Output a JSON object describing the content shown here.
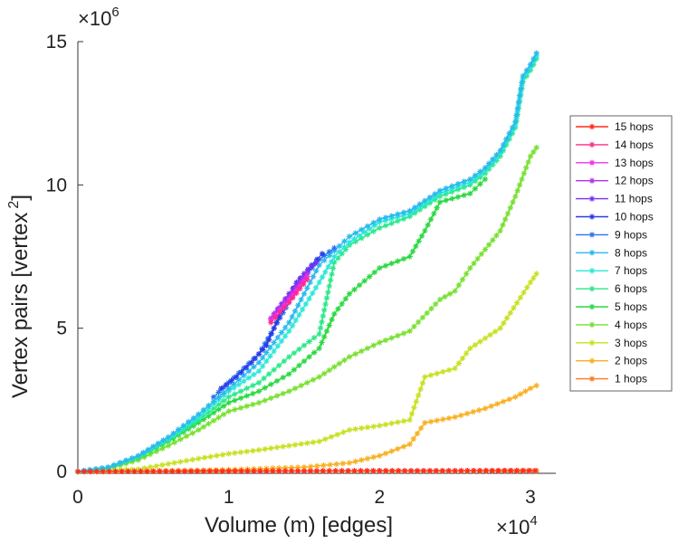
{
  "chart_data": {
    "type": "line",
    "title": "",
    "xlabel": "Volume (m) [edges]",
    "ylabel": "Vertex pairs [vertex",
    "ylabel_superscript": "2",
    "ylabel_close": "]",
    "x_multiplier_label": "×10",
    "x_multiplier_exp": "4",
    "y_multiplier_label": "×10",
    "y_multiplier_exp": "6",
    "xlim": [
      0,
      3.2
    ],
    "ylim": [
      0,
      15.5
    ],
    "x_units_note": "x values in units of 10^4 edges",
    "y_units_note": "y values in units of 10^6 vertex^2",
    "x_ticks": [
      0,
      1,
      2,
      3
    ],
    "x_tick_labels": [
      "0",
      "1",
      "2",
      "3"
    ],
    "y_ticks": [
      0,
      5,
      10,
      15
    ],
    "y_tick_labels": [
      "0",
      "5",
      "10",
      "15"
    ],
    "legend_position": "right",
    "series": [
      {
        "name": "15 hops",
        "color": "#ff2a1a",
        "x": [
          0,
          0.5,
          1,
          1.5,
          2,
          2.5,
          3.03
        ],
        "y": [
          0,
          0.01,
          0.02,
          0.02,
          0.03,
          0.03,
          0.03
        ]
      },
      {
        "name": "14 hops",
        "color": "#ff2a8a",
        "x": [
          1.28,
          1.4,
          1.52
        ],
        "y": [
          5.2,
          5.9,
          6.7
        ]
      },
      {
        "name": "13 hops",
        "color": "#ee30e0",
        "x": [
          1.28,
          1.4,
          1.52
        ],
        "y": [
          5.3,
          6.0,
          6.8
        ]
      },
      {
        "name": "12 hops",
        "color": "#b030f0",
        "x": [
          1.28,
          1.4,
          1.52
        ],
        "y": [
          5.35,
          6.1,
          6.9
        ]
      },
      {
        "name": "11 hops",
        "color": "#7a2ef0",
        "x": [
          1.3,
          1.4,
          1.5,
          1.58
        ],
        "y": [
          5.5,
          6.2,
          6.9,
          7.3
        ]
      },
      {
        "name": "10 hops",
        "color": "#2a3ae8",
        "x": [
          0.95,
          1.05,
          1.15,
          1.25,
          1.35,
          1.45,
          1.55,
          1.62
        ],
        "y": [
          2.9,
          3.3,
          3.8,
          4.4,
          5.6,
          6.6,
          7.2,
          7.6
        ]
      },
      {
        "name": "9 hops",
        "color": "#2a72ee",
        "x": [
          0.9,
          1.0,
          1.1,
          1.2,
          1.3,
          1.4,
          1.5,
          1.6,
          1.7
        ],
        "y": [
          2.6,
          3.1,
          3.6,
          4.1,
          5.0,
          5.9,
          6.8,
          7.4,
          7.8
        ]
      },
      {
        "name": "8 hops",
        "color": "#2ab8ee",
        "x": [
          0,
          0.2,
          0.4,
          0.6,
          0.8,
          1.0,
          1.2,
          1.4,
          1.6,
          1.7,
          1.8,
          2.0,
          2.2,
          2.4,
          2.6,
          2.7,
          2.8,
          2.9,
          2.95,
          3.0,
          3.04
        ],
        "y": [
          0,
          0.15,
          0.55,
          1.2,
          2.0,
          2.9,
          3.8,
          5.2,
          7.2,
          7.7,
          8.2,
          8.8,
          9.1,
          9.8,
          10.2,
          10.6,
          11.2,
          12.2,
          13.8,
          14.2,
          14.6
        ]
      },
      {
        "name": "7 hops",
        "color": "#2ae8d8",
        "x": [
          0,
          0.2,
          0.4,
          0.6,
          0.8,
          1.0,
          1.2,
          1.4,
          1.6,
          1.7,
          1.8,
          2.0,
          2.2,
          2.4,
          2.6,
          2.7,
          2.8,
          2.9,
          2.95,
          3.0,
          3.04
        ],
        "y": [
          0,
          0.14,
          0.53,
          1.15,
          1.9,
          2.8,
          3.5,
          4.9,
          6.6,
          7.5,
          8.0,
          8.7,
          9.0,
          9.7,
          10.1,
          10.5,
          11.1,
          12.1,
          13.7,
          14.1,
          14.5
        ]
      },
      {
        "name": "6 hops",
        "color": "#2ae888",
        "x": [
          0,
          0.2,
          0.4,
          0.6,
          0.8,
          1.0,
          1.2,
          1.4,
          1.6,
          1.7,
          1.8,
          2.0,
          2.2,
          2.4,
          2.6,
          2.7,
          2.8,
          2.9,
          2.95,
          3.0,
          3.04
        ],
        "y": [
          0,
          0.13,
          0.5,
          1.1,
          1.8,
          2.6,
          3.1,
          4.0,
          4.8,
          7.3,
          7.9,
          8.5,
          8.9,
          9.6,
          10.0,
          10.4,
          11.0,
          12.0,
          13.6,
          14.0,
          14.4
        ]
      },
      {
        "name": "5 hops",
        "color": "#2ad840",
        "x": [
          0,
          0.2,
          0.4,
          0.6,
          0.8,
          1.0,
          1.2,
          1.4,
          1.6,
          1.7,
          1.8,
          2.0,
          2.2,
          2.3,
          2.4,
          2.6,
          2.7
        ],
        "y": [
          0,
          0.12,
          0.48,
          1.05,
          1.7,
          2.4,
          2.8,
          3.4,
          4.3,
          5.5,
          6.2,
          7.1,
          7.5,
          8.4,
          9.4,
          9.7,
          10.2
        ]
      },
      {
        "name": "4 hops",
        "color": "#78e030",
        "x": [
          0,
          0.2,
          0.4,
          0.6,
          0.8,
          1.0,
          1.2,
          1.4,
          1.6,
          1.8,
          2.0,
          2.2,
          2.4,
          2.5,
          2.6,
          2.8,
          2.9,
          3.0,
          3.04
        ],
        "y": [
          0,
          0.1,
          0.4,
          0.9,
          1.45,
          2.1,
          2.4,
          2.8,
          3.3,
          4.0,
          4.5,
          4.9,
          6.0,
          6.3,
          7.1,
          8.4,
          9.6,
          11.0,
          11.3
        ]
      },
      {
        "name": "3 hops",
        "color": "#c8e020",
        "x": [
          0,
          0.4,
          0.8,
          1.0,
          1.2,
          1.6,
          1.8,
          2.0,
          2.2,
          2.3,
          2.5,
          2.6,
          2.8,
          3.0,
          3.04
        ],
        "y": [
          0,
          0.08,
          0.45,
          0.62,
          0.75,
          1.05,
          1.45,
          1.6,
          1.8,
          3.3,
          3.6,
          4.3,
          5.0,
          6.6,
          6.9
        ]
      },
      {
        "name": "2 hops",
        "color": "#f8b020",
        "x": [
          0,
          0.5,
          1.0,
          1.5,
          1.8,
          2.0,
          2.2,
          2.3,
          2.5,
          2.7,
          2.9,
          3.0,
          3.04
        ],
        "y": [
          0,
          0.02,
          0.06,
          0.15,
          0.3,
          0.55,
          0.95,
          1.7,
          1.9,
          2.2,
          2.6,
          2.9,
          3.0
        ]
      },
      {
        "name": "1 hops",
        "color": "#ff7a1a",
        "x": [
          0,
          0.5,
          1.0,
          1.5,
          2.0,
          2.5,
          3.04
        ],
        "y": [
          0,
          0.01,
          0.01,
          0.02,
          0.02,
          0.02,
          0.03
        ]
      }
    ]
  }
}
